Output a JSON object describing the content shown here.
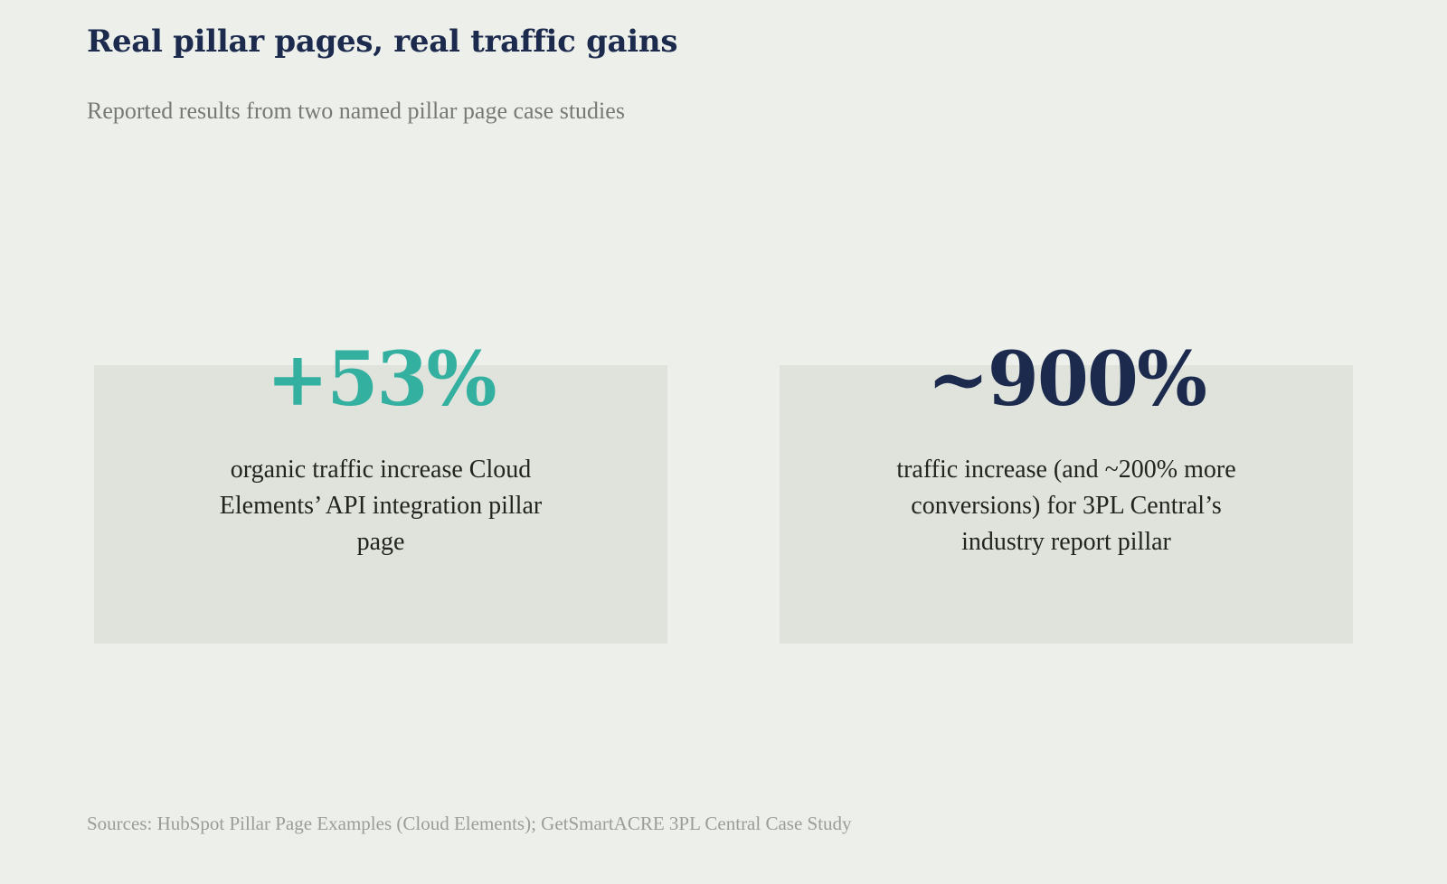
{
  "header": {
    "title": "Real pillar pages, real traffic gains",
    "subtitle": "Reported results from two named pillar page case studies"
  },
  "cards": [
    {
      "stat": "+53%",
      "description": "organic traffic increase Cloud Elements’ API integration pillar page",
      "stat_color": "#34b0a0"
    },
    {
      "stat": "~900%",
      "description": "traffic increase (and ~200% more conversions) for 3PL Central’s industry report pillar",
      "stat_color": "#1c2a4e"
    }
  ],
  "footer": {
    "sources": "Sources: HubSpot Pillar Page Examples (Cloud Elements); GetSmartACRE 3PL Central Case Study"
  },
  "colors": {
    "background": "#edefea",
    "card_background": "#dfe3dc",
    "title": "#1c2a4e",
    "accent_teal": "#34b0a0",
    "accent_navy": "#1c2a4e"
  }
}
